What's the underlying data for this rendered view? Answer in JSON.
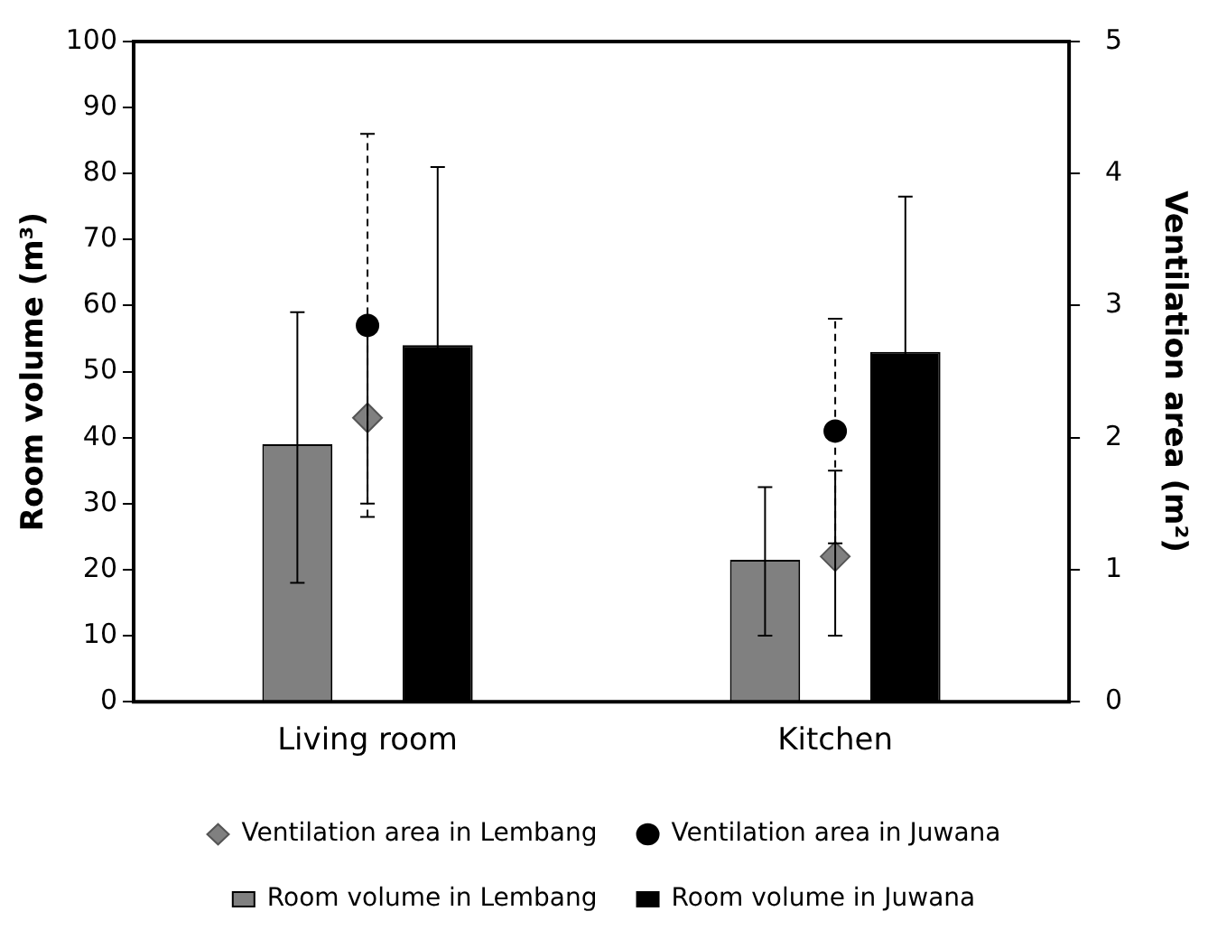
{
  "chart_data": {
    "type": "bar",
    "xlabel": null,
    "ylabel": "Room volume (m³)",
    "y2label": "Ventilation area (m²)",
    "categories": [
      "Living room",
      "Kitchen"
    ],
    "series": [
      {
        "name": "Room volume in Lembang",
        "color": "#808080",
        "values": [
          39,
          21.5
        ],
        "errors": [
          [
            18,
            59
          ],
          [
            10,
            32.5
          ]
        ],
        "marker": "square"
      },
      {
        "name": "Room volume in Juwana",
        "color": "#000000",
        "values": [
          54,
          53
        ],
        "errors": [
          27,
          23.5
        ],
        "marker": "square"
      },
      {
        "name": "Ventilation area in Lembang",
        "type": "scatter",
        "axis": "y2",
        "color": "#808080",
        "values": [
          2.15,
          1.1
        ],
        "errors": [
          0.65,
          [
            0.5,
            1.75
          ]
        ],
        "marker": "diamond",
        "line_style": "solid"
      },
      {
        "name": "Ventilation area in Juwana",
        "type": "scatter",
        "axis": "y2",
        "color": "#000000",
        "values": [
          2.85,
          2.05
        ],
        "errors": [
          1.45,
          0.85
        ],
        "marker": "circle",
        "line_style": "dashed"
      }
    ],
    "ylim": [
      0,
      100
    ],
    "yticks": [
      0,
      10,
      20,
      30,
      40,
      50,
      60,
      70,
      80,
      90,
      100
    ],
    "y2lim": [
      0,
      5
    ],
    "y2ticks": [
      0,
      1,
      2,
      3,
      4,
      5
    ],
    "grid": false,
    "legend": "bottom"
  }
}
